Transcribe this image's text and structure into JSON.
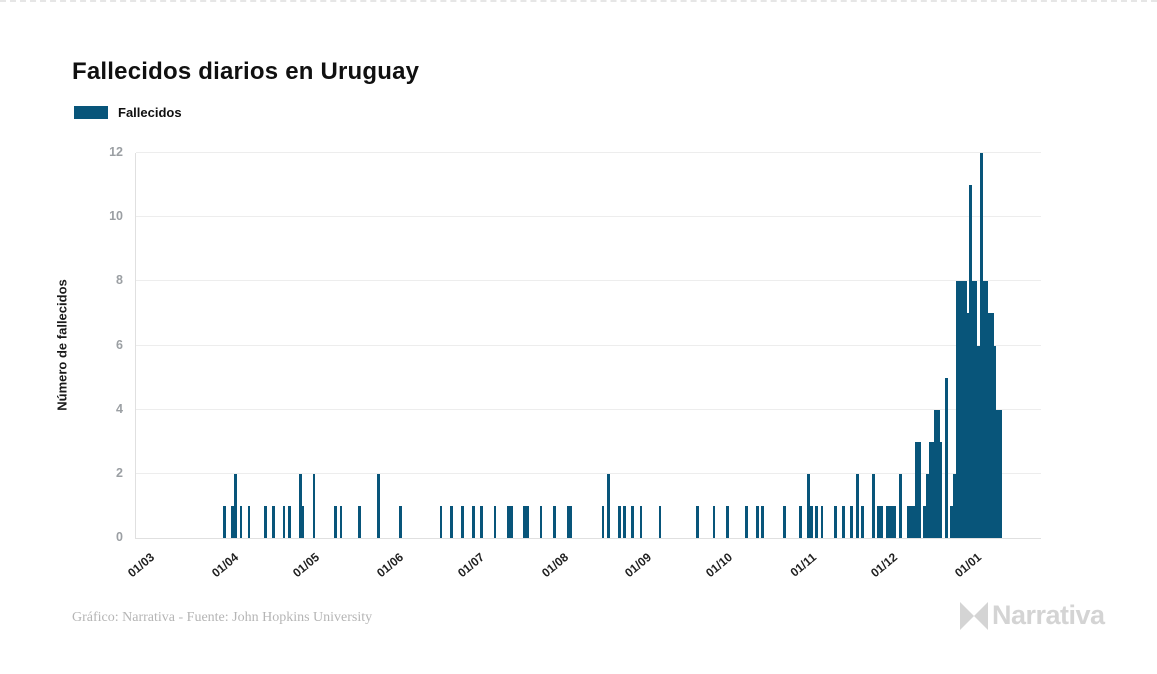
{
  "header": {
    "title": "Fallecidos diarios en Uruguay"
  },
  "legend": {
    "label": "Fallecidos",
    "swatch_color": "#08557a"
  },
  "footer": {
    "credit": "Gráfico: Narrativa - Fuente: John Hopkins University",
    "brand": "Narrativa"
  },
  "chart_data": {
    "type": "bar",
    "title": "Fallecidos diarios en Uruguay",
    "xlabel": "",
    "ylabel": "Número de fallecidos",
    "series_name": "Fallecidos",
    "bar_color": "#08557a",
    "grid": true,
    "ylim": [
      0,
      12
    ],
    "yticks": [
      0,
      2,
      4,
      6,
      8,
      10,
      12
    ],
    "x_start": "2020-03-01",
    "x_end": "2021-01-10",
    "xticks": [
      {
        "label": "01/03",
        "date": "2020-03-01"
      },
      {
        "label": "01/04",
        "date": "2020-04-01"
      },
      {
        "label": "01/05",
        "date": "2020-05-01"
      },
      {
        "label": "01/06",
        "date": "2020-06-01"
      },
      {
        "label": "01/07",
        "date": "2020-07-01"
      },
      {
        "label": "01/08",
        "date": "2020-08-01"
      },
      {
        "label": "01/09",
        "date": "2020-09-01"
      },
      {
        "label": "01/10",
        "date": "2020-10-01"
      },
      {
        "label": "01/11",
        "date": "2020-11-01"
      },
      {
        "label": "01/12",
        "date": "2020-12-01"
      },
      {
        "label": "01/01",
        "date": "2021-01-01"
      }
    ],
    "points": [
      [
        "2020-03-29",
        1
      ],
      [
        "2020-04-01",
        1
      ],
      [
        "2020-04-02",
        2
      ],
      [
        "2020-04-04",
        1
      ],
      [
        "2020-04-07",
        1
      ],
      [
        "2020-04-13",
        1
      ],
      [
        "2020-04-16",
        1
      ],
      [
        "2020-04-20",
        1
      ],
      [
        "2020-04-22",
        1
      ],
      [
        "2020-04-26",
        2
      ],
      [
        "2020-04-27",
        1
      ],
      [
        "2020-05-01",
        2
      ],
      [
        "2020-05-09",
        1
      ],
      [
        "2020-05-11",
        1
      ],
      [
        "2020-05-18",
        1
      ],
      [
        "2020-05-25",
        2
      ],
      [
        "2020-06-02",
        1
      ],
      [
        "2020-06-17",
        1
      ],
      [
        "2020-06-21",
        1
      ],
      [
        "2020-06-25",
        1
      ],
      [
        "2020-06-29",
        1
      ],
      [
        "2020-07-02",
        1
      ],
      [
        "2020-07-07",
        1
      ],
      [
        "2020-07-12",
        1
      ],
      [
        "2020-07-13",
        1
      ],
      [
        "2020-07-18",
        1
      ],
      [
        "2020-07-19",
        1
      ],
      [
        "2020-07-24",
        1
      ],
      [
        "2020-07-29",
        1
      ],
      [
        "2020-08-03",
        1
      ],
      [
        "2020-08-04",
        1
      ],
      [
        "2020-08-16",
        1
      ],
      [
        "2020-08-18",
        2
      ],
      [
        "2020-08-22",
        1
      ],
      [
        "2020-08-24",
        1
      ],
      [
        "2020-08-27",
        1
      ],
      [
        "2020-08-30",
        1
      ],
      [
        "2020-09-06",
        1
      ],
      [
        "2020-09-20",
        1
      ],
      [
        "2020-09-26",
        1
      ],
      [
        "2020-10-01",
        1
      ],
      [
        "2020-10-08",
        1
      ],
      [
        "2020-10-12",
        1
      ],
      [
        "2020-10-14",
        1
      ],
      [
        "2020-10-22",
        1
      ],
      [
        "2020-10-28",
        1
      ],
      [
        "2020-10-31",
        2
      ],
      [
        "2020-11-01",
        1
      ],
      [
        "2020-11-03",
        1
      ],
      [
        "2020-11-05",
        1
      ],
      [
        "2020-11-10",
        1
      ],
      [
        "2020-11-13",
        1
      ],
      [
        "2020-11-16",
        1
      ],
      [
        "2020-11-18",
        2
      ],
      [
        "2020-11-20",
        1
      ],
      [
        "2020-11-24",
        2
      ],
      [
        "2020-11-26",
        1
      ],
      [
        "2020-11-27",
        1
      ],
      [
        "2020-11-29",
        1
      ],
      [
        "2020-11-30",
        1
      ],
      [
        "2020-12-01",
        1
      ],
      [
        "2020-12-02",
        1
      ],
      [
        "2020-12-04",
        2
      ],
      [
        "2020-12-07",
        1
      ],
      [
        "2020-12-08",
        1
      ],
      [
        "2020-12-09",
        1
      ],
      [
        "2020-12-10",
        3
      ],
      [
        "2020-12-11",
        3
      ],
      [
        "2020-12-13",
        1
      ],
      [
        "2020-12-14",
        2
      ],
      [
        "2020-12-15",
        3
      ],
      [
        "2020-12-16",
        3
      ],
      [
        "2020-12-17",
        4
      ],
      [
        "2020-12-18",
        4
      ],
      [
        "2020-12-19",
        3
      ],
      [
        "2020-12-21",
        5
      ],
      [
        "2020-12-23",
        1
      ],
      [
        "2020-12-24",
        2
      ],
      [
        "2020-12-25",
        8
      ],
      [
        "2020-12-26",
        8
      ],
      [
        "2020-12-27",
        8
      ],
      [
        "2020-12-28",
        8
      ],
      [
        "2020-12-29",
        7
      ],
      [
        "2020-12-30",
        11
      ],
      [
        "2020-12-31",
        8
      ],
      [
        "2021-01-01",
        8
      ],
      [
        "2021-01-02",
        6
      ],
      [
        "2021-01-03",
        12
      ],
      [
        "2021-01-04",
        8
      ],
      [
        "2021-01-05",
        8
      ],
      [
        "2021-01-06",
        7
      ],
      [
        "2021-01-07",
        7
      ],
      [
        "2021-01-08",
        6
      ],
      [
        "2021-01-09",
        4
      ],
      [
        "2021-01-10",
        4
      ]
    ]
  }
}
